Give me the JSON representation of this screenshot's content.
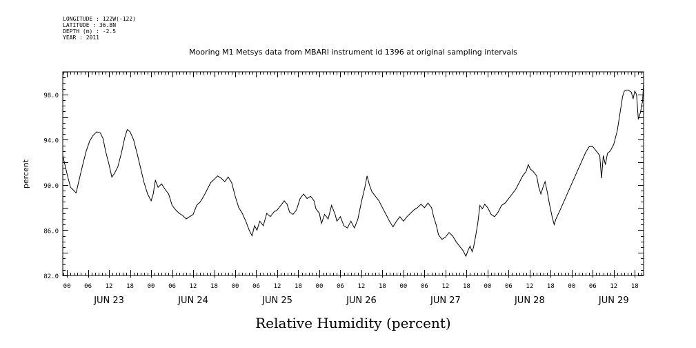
{
  "meta": {
    "longitude": "LONGITUDE : 122W(-122)",
    "latitude": "LATITUDE : 36.8N",
    "depth": "DEPTH (m) : -2.5",
    "year": "YEAR : 2011"
  },
  "chart_data": {
    "type": "line",
    "title": "Mooring M1 Metsys data from MBARI instrument id 1396 at original sampling intervals",
    "xlabel": "Relative Humidity (percent)",
    "ylabel": "percent",
    "ylim": [
      82.0,
      100.0
    ],
    "y_tick_labels": [
      "82.0",
      "86.0",
      "90.0",
      "94.0",
      "98.0"
    ],
    "x_hour_ticks": [
      "00",
      "06",
      "12",
      "18",
      "00",
      "06",
      "12",
      "18",
      "00",
      "06",
      "12",
      "18",
      "00",
      "06",
      "12",
      "18",
      "00",
      "06",
      "12",
      "18",
      "00",
      "06",
      "12",
      "18",
      "00",
      "06",
      "12",
      "18"
    ],
    "x_day_labels": [
      "JUN 23",
      "JUN 24",
      "JUN 25",
      "JUN 26",
      "JUN 27",
      "JUN 28",
      "JUN 29"
    ],
    "x_units": "hours since 2011-06-23 00:00",
    "xlim": [
      -1.2,
      164.5
    ],
    "grid": false,
    "series": [
      {
        "values": [
          [
            -1.2,
            92.6
          ],
          [
            0,
            91.0
          ],
          [
            1,
            89.8
          ],
          [
            2,
            89.5
          ],
          [
            2.6,
            89.3
          ],
          [
            3.5,
            90.5
          ],
          [
            4.5,
            91.8
          ],
          [
            5.5,
            93.0
          ],
          [
            6.5,
            93.9
          ],
          [
            7.5,
            94.4
          ],
          [
            8.5,
            94.7
          ],
          [
            9.5,
            94.6
          ],
          [
            10.3,
            94.1
          ],
          [
            11,
            93.0
          ],
          [
            12,
            91.8
          ],
          [
            12.8,
            90.7
          ],
          [
            13.5,
            91.0
          ],
          [
            14.5,
            91.6
          ],
          [
            15.5,
            92.8
          ],
          [
            16.5,
            94.2
          ],
          [
            17.2,
            94.9
          ],
          [
            18,
            94.7
          ],
          [
            19,
            94.0
          ],
          [
            20,
            92.8
          ],
          [
            21,
            91.5
          ],
          [
            22,
            90.2
          ],
          [
            23,
            89.2
          ],
          [
            24,
            88.6
          ],
          [
            24.6,
            89.2
          ],
          [
            25.2,
            90.4
          ],
          [
            26,
            89.8
          ],
          [
            27,
            90.1
          ],
          [
            28,
            89.6
          ],
          [
            29,
            89.2
          ],
          [
            30,
            88.2
          ],
          [
            31,
            87.8
          ],
          [
            32,
            87.5
          ],
          [
            33,
            87.3
          ],
          [
            34,
            87.0
          ],
          [
            35,
            87.2
          ],
          [
            36,
            87.4
          ],
          [
            37,
            88.2
          ],
          [
            38,
            88.5
          ],
          [
            39,
            89.0
          ],
          [
            40,
            89.6
          ],
          [
            41,
            90.2
          ],
          [
            42,
            90.5
          ],
          [
            43,
            90.8
          ],
          [
            44,
            90.6
          ],
          [
            45,
            90.3
          ],
          [
            46,
            90.7
          ],
          [
            47,
            90.2
          ],
          [
            48,
            89.0
          ],
          [
            49,
            88.0
          ],
          [
            50,
            87.5
          ],
          [
            51,
            86.8
          ],
          [
            52,
            86.0
          ],
          [
            52.8,
            85.5
          ],
          [
            53.5,
            86.4
          ],
          [
            54.2,
            86.0
          ],
          [
            55,
            86.8
          ],
          [
            56,
            86.4
          ],
          [
            57,
            87.5
          ],
          [
            58,
            87.2
          ],
          [
            59,
            87.6
          ],
          [
            60,
            87.8
          ],
          [
            61,
            88.2
          ],
          [
            62,
            88.6
          ],
          [
            62.8,
            88.3
          ],
          [
            63.5,
            87.6
          ],
          [
            64.5,
            87.4
          ],
          [
            65.5,
            87.8
          ],
          [
            66.5,
            88.8
          ],
          [
            67.5,
            89.2
          ],
          [
            68.5,
            88.8
          ],
          [
            69.5,
            89.0
          ],
          [
            70.5,
            88.6
          ],
          [
            71,
            87.9
          ],
          [
            72,
            87.5
          ],
          [
            72.6,
            86.6
          ],
          [
            73.5,
            87.4
          ],
          [
            74.5,
            87.0
          ],
          [
            75.5,
            88.2
          ],
          [
            76.5,
            87.4
          ],
          [
            77,
            86.8
          ],
          [
            78,
            87.2
          ],
          [
            79,
            86.4
          ],
          [
            80,
            86.2
          ],
          [
            81,
            86.8
          ],
          [
            82,
            86.2
          ],
          [
            83,
            87.0
          ],
          [
            84,
            88.5
          ],
          [
            85,
            89.8
          ],
          [
            85.6,
            90.8
          ],
          [
            86.3,
            90.0
          ],
          [
            87,
            89.4
          ],
          [
            88,
            89.0
          ],
          [
            89,
            88.6
          ],
          [
            90,
            88.0
          ],
          [
            91,
            87.4
          ],
          [
            92,
            86.8
          ],
          [
            93,
            86.3
          ],
          [
            94,
            86.8
          ],
          [
            95,
            87.2
          ],
          [
            96,
            86.8
          ],
          [
            97,
            87.2
          ],
          [
            98,
            87.5
          ],
          [
            99,
            87.8
          ],
          [
            100,
            88.0
          ],
          [
            101,
            88.3
          ],
          [
            102,
            88.0
          ],
          [
            103,
            88.4
          ],
          [
            104,
            88.0
          ],
          [
            104.6,
            87.2
          ],
          [
            105.4,
            86.4
          ],
          [
            106,
            85.6
          ],
          [
            107,
            85.2
          ],
          [
            108,
            85.4
          ],
          [
            109,
            85.8
          ],
          [
            110,
            85.5
          ],
          [
            111,
            85.0
          ],
          [
            112,
            84.6
          ],
          [
            113,
            84.2
          ],
          [
            113.8,
            83.7
          ],
          [
            114.4,
            84.2
          ],
          [
            115,
            84.6
          ],
          [
            115.6,
            84.1
          ],
          [
            116,
            84.5
          ],
          [
            116.6,
            85.5
          ],
          [
            117.2,
            86.6
          ],
          [
            117.8,
            88.2
          ],
          [
            118.5,
            87.9
          ],
          [
            119.2,
            88.3
          ],
          [
            120,
            88.0
          ],
          [
            121,
            87.4
          ],
          [
            122,
            87.2
          ],
          [
            123,
            87.6
          ],
          [
            124,
            88.2
          ],
          [
            125,
            88.4
          ],
          [
            126,
            88.8
          ],
          [
            127,
            89.2
          ],
          [
            128,
            89.6
          ],
          [
            129,
            90.2
          ],
          [
            130,
            90.8
          ],
          [
            131,
            91.2
          ],
          [
            131.6,
            91.8
          ],
          [
            132.2,
            91.4
          ],
          [
            133,
            91.2
          ],
          [
            134,
            90.8
          ],
          [
            134.6,
            89.8
          ],
          [
            135.2,
            89.2
          ],
          [
            135.8,
            89.8
          ],
          [
            136.4,
            90.3
          ],
          [
            137,
            89.4
          ],
          [
            137.6,
            88.4
          ],
          [
            138.4,
            87.2
          ],
          [
            139,
            86.5
          ],
          [
            139.5,
            87.0
          ],
          [
            141,
            88.0
          ],
          [
            143,
            89.4
          ],
          [
            145,
            90.8
          ],
          [
            147,
            92.2
          ],
          [
            148,
            92.9
          ],
          [
            149,
            93.4
          ],
          [
            150,
            93.4
          ],
          [
            151,
            93.0
          ],
          [
            152,
            92.6
          ],
          [
            152.5,
            90.6
          ],
          [
            153,
            92.6
          ],
          [
            153.6,
            91.8
          ],
          [
            154.2,
            92.8
          ],
          [
            155,
            93.0
          ],
          [
            156,
            93.6
          ],
          [
            157,
            94.8
          ],
          [
            158,
            96.8
          ],
          [
            158.5,
            97.8
          ],
          [
            159,
            98.3
          ],
          [
            160,
            98.4
          ],
          [
            161,
            98.2
          ],
          [
            161.5,
            97.6
          ],
          [
            162,
            98.3
          ],
          [
            162.5,
            98.0
          ],
          [
            163,
            95.8
          ],
          [
            163.6,
            96.4
          ],
          [
            164.2,
            97.4
          ],
          [
            164.5,
            99.0
          ]
        ]
      }
    ]
  }
}
